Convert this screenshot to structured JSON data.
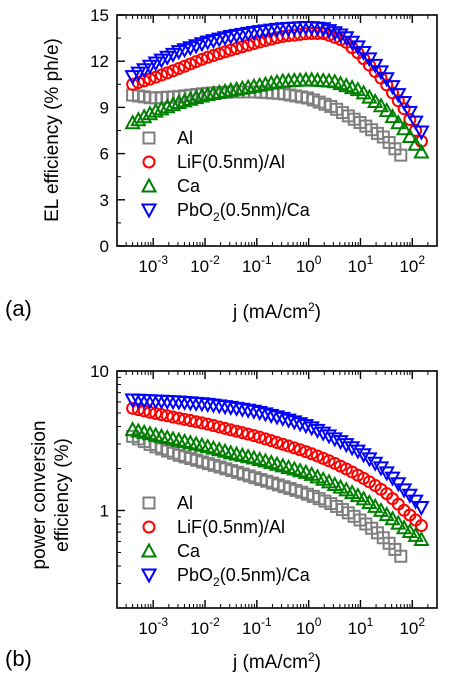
{
  "colors": {
    "Al": "#7f7f7f",
    "LiF(0.5nm)/Al": "#ff0000",
    "Ca": "#008000",
    "PbO2(0.5nm)/Ca": "#0000ff"
  },
  "chart_data": [
    {
      "type": "scatter",
      "panel_label": "(a)",
      "xlabel": "j (mA/cm2)",
      "xlabel_text": "j (mA/cm",
      "xlabel_sup": "2",
      "xlabel_close": ")",
      "ylabel": "EL efficiency (% ph/e)",
      "x_scale": "log",
      "y_scale": "linear",
      "xlim": [
        0.0002,
        300
      ],
      "ylim": [
        0,
        15
      ],
      "xtick_labels": [
        "10-3",
        "10-2",
        "10-1",
        "100",
        "101",
        "102"
      ],
      "ytick_labels": [
        "0",
        "3",
        "6",
        "9",
        "12",
        "15"
      ],
      "legend_position": "lower-left",
      "series": [
        {
          "name": "Al",
          "marker": "square",
          "x": [
            0.0004,
            0.001,
            0.003,
            0.01,
            0.03,
            0.1,
            0.3,
            1,
            3,
            10,
            30,
            60
          ],
          "y": [
            9.8,
            9.6,
            9.7,
            9.9,
            10.0,
            10.0,
            9.9,
            9.6,
            9.0,
            8.0,
            7.0,
            5.9
          ]
        },
        {
          "name": "LiF(0.5nm)/Al",
          "marker": "circle",
          "x": [
            0.0004,
            0.001,
            0.003,
            0.01,
            0.03,
            0.1,
            0.3,
            1,
            2,
            5,
            10,
            30,
            70,
            150
          ],
          "y": [
            10.5,
            10.9,
            11.5,
            12.2,
            12.7,
            13.2,
            13.6,
            13.8,
            13.8,
            13.3,
            12.4,
            10.6,
            8.9,
            6.8
          ]
        },
        {
          "name": "Ca",
          "marker": "triangle-up",
          "x": [
            0.0004,
            0.001,
            0.003,
            0.01,
            0.03,
            0.1,
            0.3,
            1,
            3,
            10,
            30,
            70,
            150
          ],
          "y": [
            8.0,
            8.7,
            9.3,
            9.8,
            10.1,
            10.4,
            10.7,
            10.8,
            10.7,
            10.1,
            8.9,
            7.6,
            6.1
          ]
        },
        {
          "name": "PbO2(0.5nm)/Ca",
          "marker": "triangle-down",
          "x": [
            0.0004,
            0.001,
            0.003,
            0.01,
            0.03,
            0.1,
            0.3,
            1,
            2,
            5,
            10,
            30,
            70,
            150
          ],
          "y": [
            11.0,
            11.8,
            12.6,
            13.2,
            13.6,
            13.9,
            14.1,
            14.2,
            14.1,
            13.6,
            12.8,
            11.0,
            9.3,
            7.4
          ]
        }
      ]
    },
    {
      "type": "scatter",
      "panel_label": "(b)",
      "xlabel": "j (mA/cm2)",
      "xlabel_text": "j (mA/cm",
      "xlabel_sup": "2",
      "xlabel_close": ")",
      "ylabel_line1": "power conversion",
      "ylabel_line2": "efficiency (%)",
      "x_scale": "log",
      "y_scale": "log",
      "xlim": [
        0.0002,
        300
      ],
      "ylim": [
        0.2,
        10
      ],
      "xtick_labels": [
        "10-3",
        "10-2",
        "10-1",
        "100",
        "101",
        "102"
      ],
      "ytick_labels": [
        "1",
        "10"
      ],
      "legend_position": "lower-left",
      "series": [
        {
          "name": "Al",
          "marker": "square",
          "x": [
            0.0004,
            0.001,
            0.003,
            0.01,
            0.03,
            0.1,
            0.3,
            1,
            3,
            10,
            30,
            60
          ],
          "y": [
            3.4,
            2.9,
            2.5,
            2.2,
            1.95,
            1.7,
            1.5,
            1.3,
            1.1,
            0.85,
            0.62,
            0.47
          ]
        },
        {
          "name": "LiF(0.5nm)/Al",
          "marker": "circle",
          "x": [
            0.0004,
            0.001,
            0.003,
            0.01,
            0.03,
            0.1,
            0.3,
            1,
            3,
            10,
            30,
            70,
            150
          ],
          "y": [
            5.4,
            5.0,
            4.6,
            4.2,
            3.8,
            3.4,
            3.0,
            2.6,
            2.2,
            1.75,
            1.35,
            1.0,
            0.78
          ]
        },
        {
          "name": "Ca",
          "marker": "triangle-up",
          "x": [
            0.0004,
            0.001,
            0.003,
            0.01,
            0.03,
            0.1,
            0.3,
            1,
            3,
            10,
            30,
            70,
            150
          ],
          "y": [
            3.8,
            3.5,
            3.2,
            2.9,
            2.6,
            2.35,
            2.1,
            1.85,
            1.55,
            1.25,
            0.95,
            0.75,
            0.62
          ]
        },
        {
          "name": "PbO2(0.5nm)/Ca",
          "marker": "triangle-down",
          "x": [
            0.0004,
            0.001,
            0.003,
            0.01,
            0.03,
            0.1,
            0.3,
            1,
            3,
            10,
            30,
            70,
            150
          ],
          "y": [
            6.2,
            6.1,
            6.0,
            5.8,
            5.5,
            5.1,
            4.6,
            4.0,
            3.3,
            2.6,
            1.9,
            1.4,
            1.05
          ]
        }
      ]
    }
  ]
}
